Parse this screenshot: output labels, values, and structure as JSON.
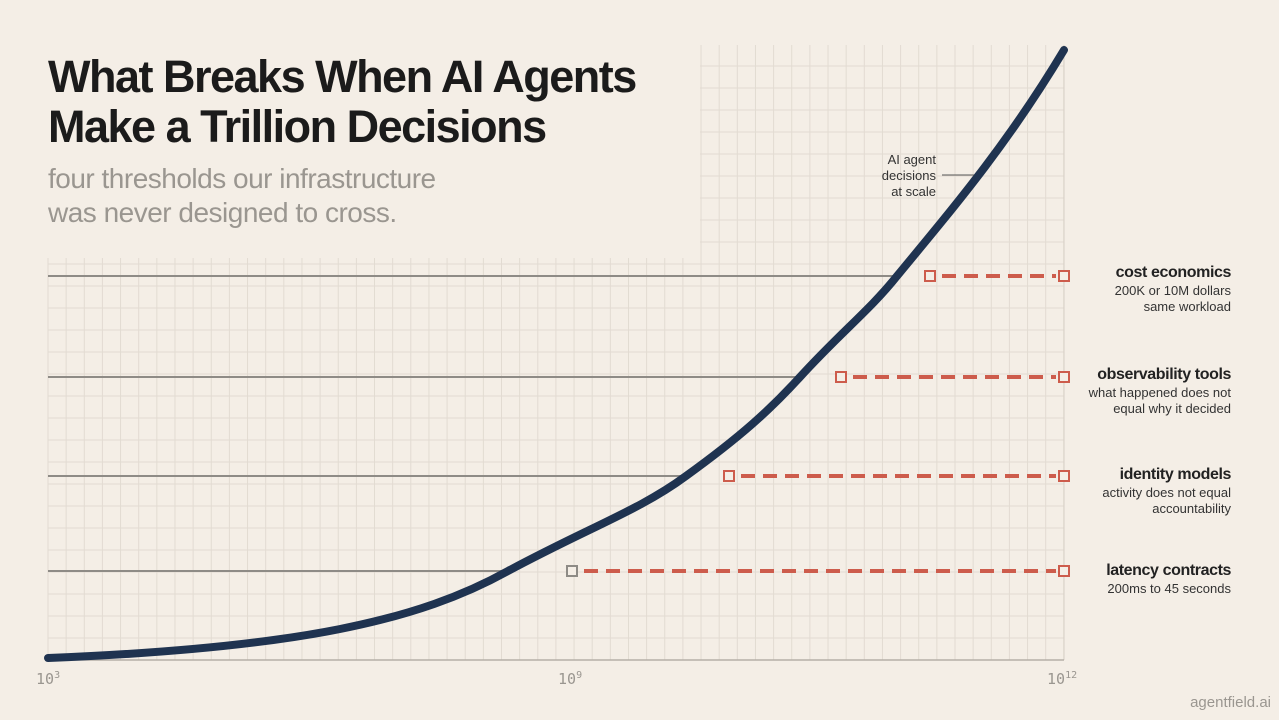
{
  "title_lines": [
    "What Breaks When AI Agents",
    "Make a Trillion Decisions"
  ],
  "subtitle_lines": [
    "four thresholds our infrastructure",
    "was never designed to cross."
  ],
  "brand": "agentfield.ai",
  "colors": {
    "background": "#f4eee6",
    "curve": "#1f3350",
    "threshold_dash": "#cd5c4c",
    "baseline": "#8e8b86",
    "grid": "#e2dbd2"
  },
  "chart_data": {
    "type": "line",
    "xscale": "log",
    "x_ticks": [
      {
        "base": "10",
        "exp": "3"
      },
      {
        "base": "10",
        "exp": "9"
      },
      {
        "base": "10",
        "exp": "12"
      }
    ],
    "xlim": [
      1000,
      1000000000000
    ],
    "grid": true,
    "series": [
      {
        "name": "AI agent decisions at scale",
        "shape": "exponential"
      }
    ],
    "curve_label_lines": [
      "AI agent",
      "decisions",
      "at scale"
    ],
    "thresholds": [
      {
        "title": "cost economics",
        "desc_lines": [
          "200K or 10M dollars",
          "same workload"
        ]
      },
      {
        "title": "observability tools",
        "desc_lines": [
          "what happened does not",
          "equal why it decided"
        ]
      },
      {
        "title": "identity models",
        "desc_lines": [
          "activity does not equal",
          "accountability"
        ]
      },
      {
        "title": "latency contracts",
        "desc_lines": [
          "200ms to 45 seconds"
        ]
      }
    ]
  }
}
